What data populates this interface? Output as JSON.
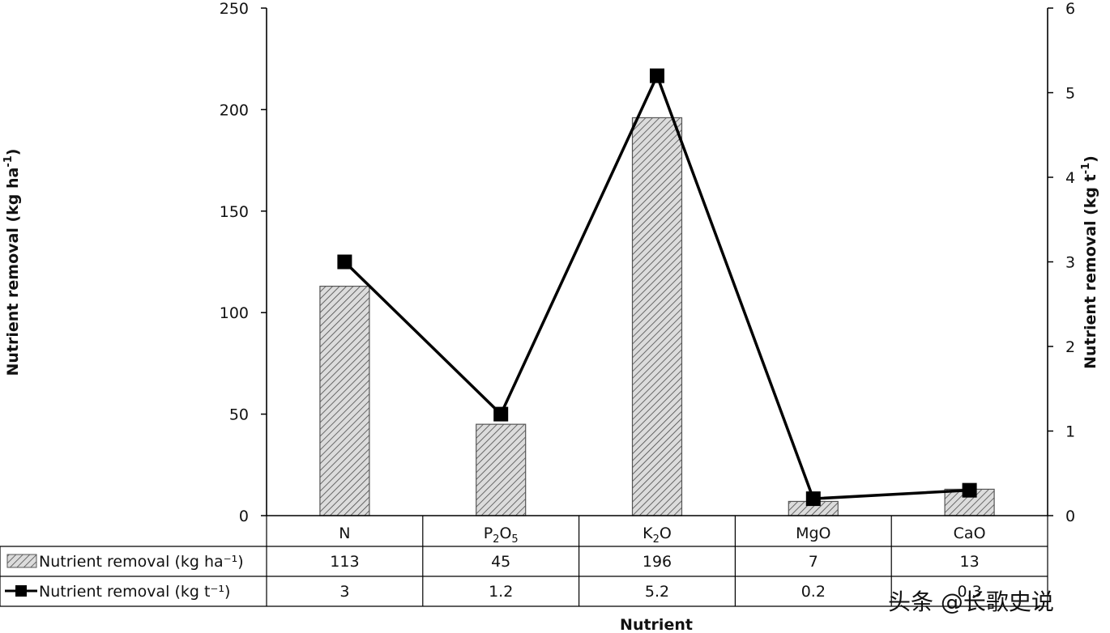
{
  "chart_data": {
    "type": "bar+line",
    "categories": [
      "N",
      "P2O5",
      "K2O",
      "MgO",
      "CaO"
    ],
    "category_labels": [
      {
        "base": "N",
        "sub": "",
        "tail": ""
      },
      {
        "base": "P",
        "sub": "2",
        "tail": "O",
        "sub2": "5"
      },
      {
        "base": "K",
        "sub": "2",
        "tail": "O",
        "sub2": ""
      },
      {
        "base": "MgO",
        "sub": "",
        "tail": ""
      },
      {
        "base": "CaO",
        "sub": "",
        "tail": ""
      }
    ],
    "series": [
      {
        "name": "Nutrient removal (kg ha⁻¹)",
        "axis": "left",
        "kind": "bar",
        "values": [
          113,
          45,
          196,
          7,
          13
        ]
      },
      {
        "name": "Nutrient removal (kg t⁻¹)",
        "axis": "right",
        "kind": "line",
        "values": [
          3,
          1.2,
          5.2,
          0.2,
          0.3
        ]
      }
    ],
    "table_values": [
      [
        "113",
        "45",
        "196",
        "7",
        "13"
      ],
      [
        "3",
        "1.2",
        "5.2",
        "0.2",
        "0.3"
      ]
    ],
    "xlabel": "Nutrient",
    "ylabel_left": {
      "text": "Nutrient removal (kg ha",
      "sup": "-1",
      "close": ")"
    },
    "ylabel_right": {
      "text": "Nutrient removal (kg t",
      "sup": "-1",
      "close": ")"
    },
    "ylim_left": [
      0,
      250
    ],
    "yticks_left": [
      0,
      50,
      100,
      150,
      200,
      250
    ],
    "ylim_right": [
      0,
      6
    ],
    "yticks_right": [
      0,
      1,
      2,
      3,
      4,
      5,
      6
    ],
    "grid": false,
    "colors": {
      "bar_fill": "#d9d9d9",
      "bar_hatch": "#555555",
      "line": "#000000",
      "axis": "#000000"
    }
  },
  "watermark": "头条 @长歌史说"
}
